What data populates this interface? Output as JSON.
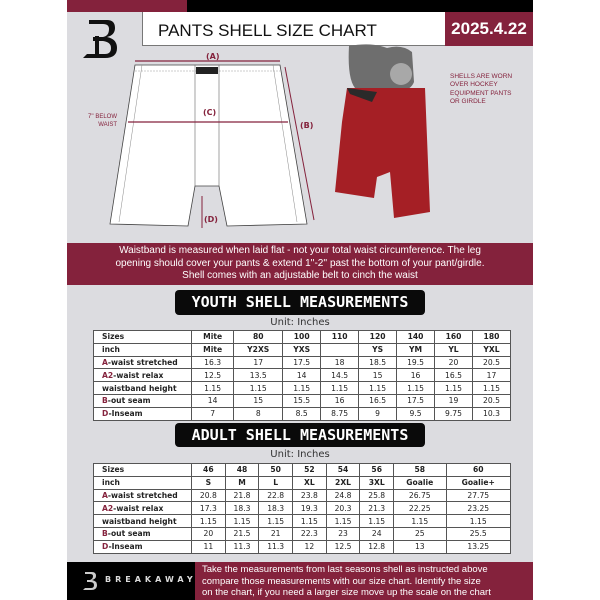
{
  "header": {
    "title": "PANTS SHELL SIZE CHART",
    "date": "2025.4.22"
  },
  "diagram": {
    "label_a": "(A)",
    "label_b": "(B)",
    "label_c": "(C)",
    "label_d": "(D)",
    "below_waist": [
      "7'' BELOW",
      "WAIST"
    ],
    "note": [
      "SHELLS ARE WORN",
      "OVER HOCKEY",
      "EQUIPMENT PANTS",
      "OR GIRDLE"
    ]
  },
  "info_band": [
    "Waistband is measured when laid flat - not your total waist circumference. The leg",
    "opening should cover your pants & extend 1''-2'' past the bottom of your pant/girdle.",
    "Shell comes with an adjustable belt to cinch the waist"
  ],
  "youth": {
    "title": "YOUTH SHELL MEASUREMENTS",
    "unit": "Unit: Inches",
    "rows": [
      {
        "label": "Sizes",
        "values": [
          "Mite",
          "80",
          "100",
          "110",
          "120",
          "140",
          "160",
          "180"
        ]
      },
      {
        "label": "inch",
        "values": [
          "Mite",
          "Y2XS",
          "YXS",
          "",
          "YS",
          "YM",
          "YL",
          "YXL"
        ]
      },
      {
        "prefix": "A",
        "label": "-waist stretched",
        "values": [
          "16.3",
          "17",
          "17.5",
          "18",
          "18.5",
          "19.5",
          "20",
          "20.5"
        ]
      },
      {
        "prefix": "A2",
        "label": "-waist relax",
        "values": [
          "12.5",
          "13.5",
          "14",
          "14.5",
          "15",
          "16",
          "16.5",
          "17"
        ]
      },
      {
        "label": "waistband height",
        "values": [
          "1.15",
          "1.15",
          "1.15",
          "1.15",
          "1.15",
          "1.15",
          "1.15",
          "1.15"
        ]
      },
      {
        "prefix": "B",
        "label": "-out seam",
        "values": [
          "14",
          "15",
          "15.5",
          "16",
          "16.5",
          "17.5",
          "19",
          "20.5"
        ]
      },
      {
        "prefix": "D",
        "label": "-Inseam",
        "values": [
          "7",
          "8",
          "8.5",
          "8.75",
          "9",
          "9.5",
          "9.75",
          "10.3"
        ]
      }
    ]
  },
  "adult": {
    "title": "ADULT SHELL MEASUREMENTS",
    "unit": "Unit: Inches",
    "rows": [
      {
        "label": "Sizes",
        "values": [
          "46",
          "48",
          "50",
          "52",
          "54",
          "56",
          "58",
          "60"
        ]
      },
      {
        "label": "inch",
        "values": [
          "S",
          "M",
          "L",
          "XL",
          "2XL",
          "3XL",
          "Goalie",
          "Goalie+"
        ]
      },
      {
        "prefix": "A",
        "label": "-waist stretched",
        "values": [
          "20.8",
          "21.8",
          "22.8",
          "23.8",
          "24.8",
          "25.8",
          "26.75",
          "27.75"
        ]
      },
      {
        "prefix": "A2",
        "label": "-waist relax",
        "values": [
          "17.3",
          "18.3",
          "18.3",
          "19.3",
          "20.3",
          "21.3",
          "22.25",
          "23.25"
        ]
      },
      {
        "label": "waistband height",
        "values": [
          "1.15",
          "1.15",
          "1.15",
          "1.15",
          "1.15",
          "1.15",
          "1.15",
          "1.15"
        ]
      },
      {
        "prefix": "B",
        "label": "-out seam",
        "values": [
          "20",
          "21.5",
          "21",
          "22.3",
          "23",
          "24",
          "25",
          "25.5"
        ]
      },
      {
        "prefix": "D",
        "label": "-Inseam",
        "values": [
          "11",
          "11.3",
          "11.3",
          "12",
          "12.5",
          "12.8",
          "13",
          "13.25"
        ]
      }
    ]
  },
  "footer": {
    "brand": "BREAKAWAY",
    "text": [
      "Take the measurements from last seasons shell as instructed above",
      "compare those measurements  with our size chart. Identify the size",
      "on the chart, if you need a larger size move up the scale on the chart"
    ]
  },
  "colors": {
    "accent": "#84223c",
    "dark": "#000000",
    "background": "#dcdce0"
  }
}
